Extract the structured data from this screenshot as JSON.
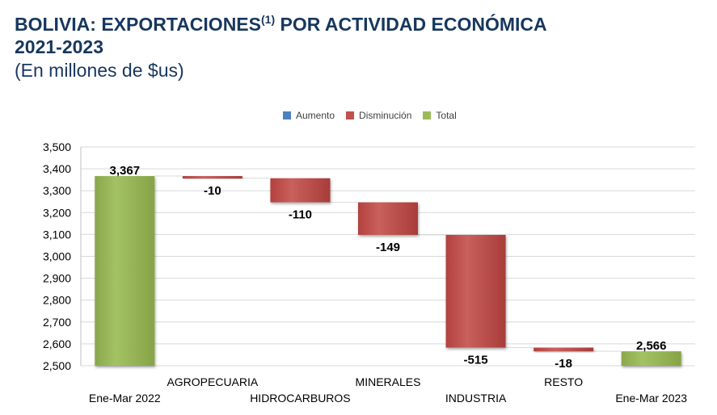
{
  "title": {
    "line1_main": "BOLIVIA: EXPORTACIONES",
    "line1_sup": "(1)",
    "line1_rest": " POR ACTIVIDAD ECONÓMICA",
    "line2": "2021-2023",
    "line3": "(En millones de $us)"
  },
  "legend": {
    "aumento": "Aumento",
    "disminucion": "Disminución",
    "total": "Total"
  },
  "colors": {
    "aumento": "#4f81bd",
    "disminucion": "#c0504d",
    "total": "#9bbb59",
    "title": "#17375e"
  },
  "chart_data": {
    "type": "waterfall",
    "ylim": [
      2500,
      3500
    ],
    "yticks": [
      2500,
      2600,
      2700,
      2800,
      2900,
      3000,
      3100,
      3200,
      3300,
      3400,
      3500
    ],
    "ytick_labels": [
      "2,500",
      "2,600",
      "2,700",
      "2,800",
      "2,900",
      "3,000",
      "3,100",
      "3,200",
      "3,300",
      "3,400",
      "3,500"
    ],
    "grid": true,
    "legend_position": "top",
    "categories": [
      "Ene-Mar 2022",
      "AGROPECUARIA",
      "HIDROCARBUROS",
      "MINERALES",
      "INDUSTRIA",
      "RESTO",
      "Ene-Mar 2023"
    ],
    "series": [
      {
        "name": "Total",
        "category": "Ene-Mar 2022",
        "start": 2500,
        "end": 3367,
        "label": "3,367"
      },
      {
        "name": "Disminución",
        "category": "AGROPECUARIA",
        "start": 3367,
        "end": 3357,
        "label": "-10"
      },
      {
        "name": "Disminución",
        "category": "HIDROCARBUROS",
        "start": 3357,
        "end": 3247,
        "label": "-110"
      },
      {
        "name": "Disminución",
        "category": "MINERALES",
        "start": 3247,
        "end": 3098,
        "label": "-149"
      },
      {
        "name": "Disminución",
        "category": "INDUSTRIA",
        "start": 3098,
        "end": 2583,
        "label": "-515"
      },
      {
        "name": "Disminución",
        "category": "RESTO",
        "start": 2583,
        "end": 2566,
        "label": "-18"
      },
      {
        "name": "Total",
        "category": "Ene-Mar 2023",
        "start": 2500,
        "end": 2566,
        "label": "2,566"
      }
    ]
  }
}
